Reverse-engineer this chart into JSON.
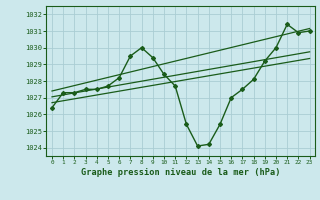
{
  "xlabel": "Graphe pression niveau de la mer (hPa)",
  "background_color": "#cce8ec",
  "grid_color": "#aacdd4",
  "line_color": "#1a5c1a",
  "hours": [
    0,
    1,
    2,
    3,
    4,
    5,
    6,
    7,
    8,
    9,
    10,
    11,
    12,
    13,
    14,
    15,
    16,
    17,
    18,
    19,
    20,
    21,
    22,
    23
  ],
  "pressure": [
    1026.4,
    1027.3,
    1027.3,
    1027.5,
    1027.5,
    1027.7,
    1028.2,
    1029.5,
    1030.0,
    1029.4,
    1028.4,
    1027.7,
    1025.4,
    1024.1,
    1024.2,
    1025.4,
    1027.0,
    1027.5,
    1028.1,
    1029.2,
    1030.0,
    1031.4,
    1030.9,
    1031.0
  ],
  "ylim": [
    1023.5,
    1032.5
  ],
  "yticks": [
    1024,
    1025,
    1026,
    1027,
    1028,
    1029,
    1030,
    1031,
    1032
  ],
  "trend_lines": [
    [
      1026.7,
      1029.35
    ],
    [
      1027.05,
      1029.75
    ],
    [
      1027.4,
      1031.15
    ]
  ]
}
